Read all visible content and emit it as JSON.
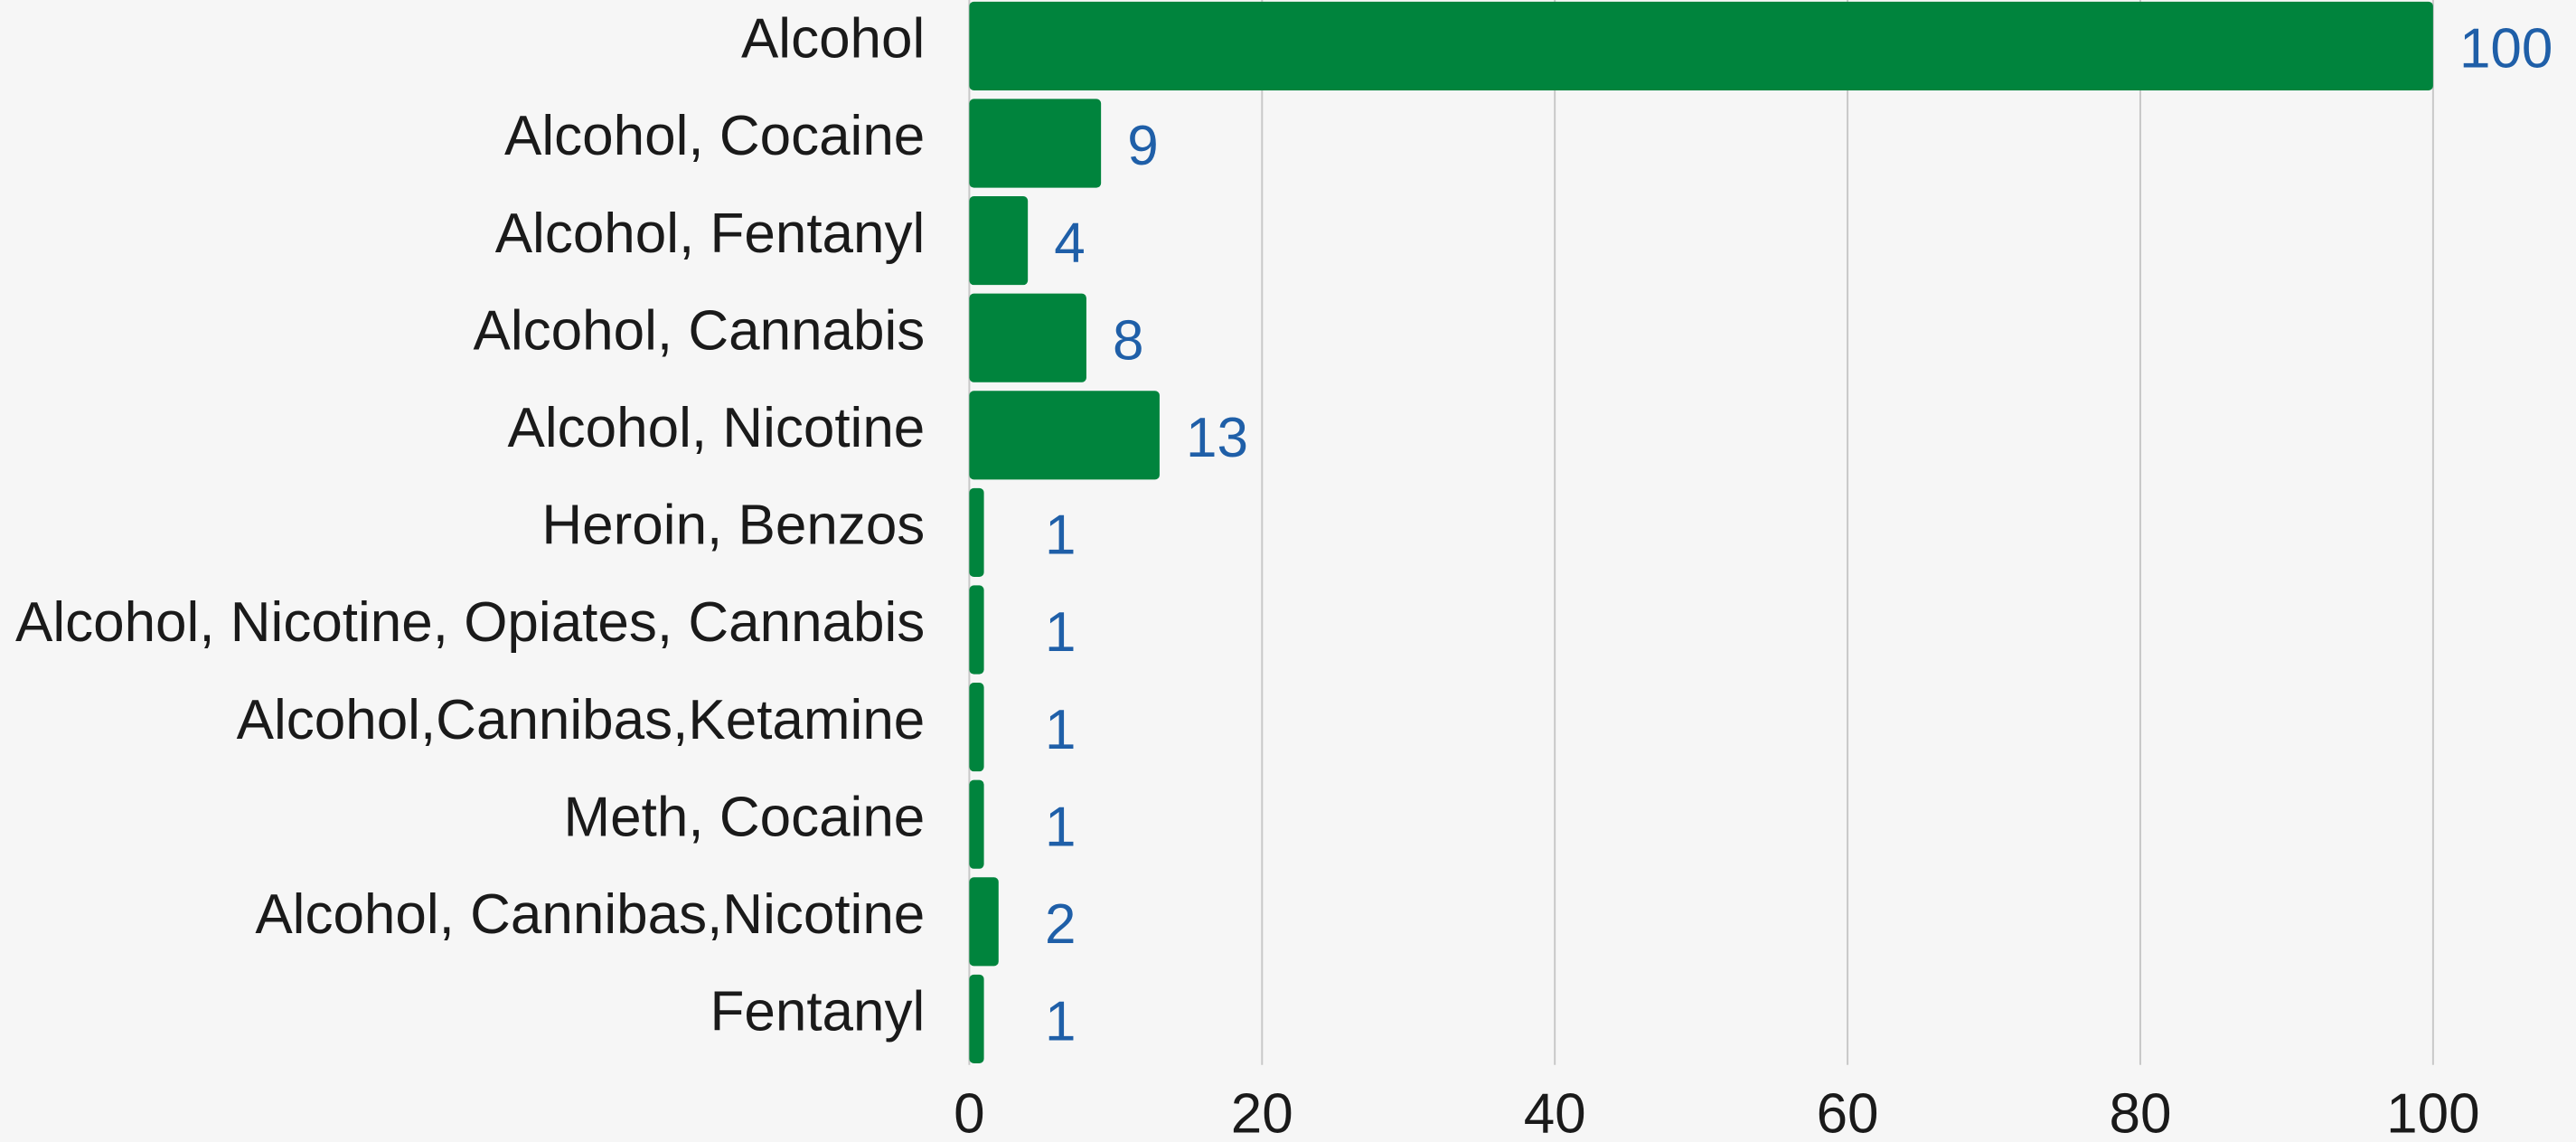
{
  "chart_data": {
    "type": "bar",
    "orientation": "horizontal",
    "categories": [
      "Alcohol",
      "Alcohol, Cocaine",
      "Alcohol, Fentanyl",
      "Alcohol, Cannabis",
      "Alcohol, Nicotine",
      "Heroin, Benzos",
      "Alcohol, Nicotine, Opiates, Cannabis",
      "Alcohol,Cannibas,Ketamine",
      "Meth, Cocaine",
      "Alcohol, Cannibas,Nicotine",
      "Fentanyl"
    ],
    "values": [
      100,
      9,
      4,
      8,
      13,
      1,
      1,
      1,
      1,
      2,
      1
    ],
    "color": "#00843d",
    "xlim": [
      0,
      100
    ],
    "xticks": [
      0,
      20,
      40,
      60,
      80,
      100
    ],
    "grid": true
  }
}
